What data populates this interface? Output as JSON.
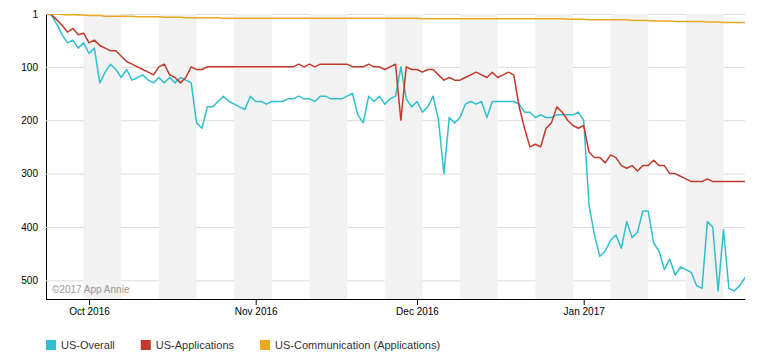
{
  "chart_data": {
    "type": "line",
    "x": [
      0,
      1,
      2,
      3,
      4,
      5,
      6,
      7,
      8,
      9,
      10,
      11,
      12,
      13,
      14,
      15,
      16,
      17,
      18,
      19,
      20,
      21,
      22,
      23,
      24,
      25,
      26,
      27,
      28,
      29,
      30,
      31,
      32,
      33,
      34,
      35,
      36,
      37,
      38,
      39,
      40,
      41,
      42,
      43,
      44,
      45,
      46,
      47,
      48,
      49,
      50,
      51,
      52,
      53,
      54,
      55,
      56,
      57,
      58,
      59,
      60,
      61,
      62,
      63,
      64,
      65,
      66,
      67,
      68,
      69,
      70,
      71,
      72,
      73,
      74,
      75,
      76,
      77,
      78,
      79,
      80,
      81,
      82,
      83,
      84,
      85,
      86,
      87,
      88,
      89,
      90,
      91,
      92,
      93,
      94,
      95,
      96,
      97,
      98,
      99,
      100,
      101,
      102,
      103,
      104,
      105,
      106,
      107,
      108,
      109,
      110,
      111,
      112,
      113,
      114,
      115,
      116,
      117,
      118,
      119,
      120,
      121,
      122,
      123,
      124,
      125,
      126,
      127,
      128,
      129,
      130
    ],
    "xlim": [
      0,
      130
    ],
    "xticks": [
      {
        "value": 8,
        "label": "Oct 2016"
      },
      {
        "value": 39,
        "label": "Nov 2016"
      },
      {
        "value": 69,
        "label": "Dec 2016"
      },
      {
        "value": 100,
        "label": "Jan 2017"
      }
    ],
    "ylim": [
      535,
      1
    ],
    "yticks": [
      1,
      100,
      200,
      300,
      400,
      500
    ],
    "grid": true,
    "legend": "bottom",
    "annotations": [
      "©2017 App Annie"
    ],
    "series": [
      {
        "name": "US-Overall",
        "color": "#30bfcf",
        "values": [
          1,
          3,
          20,
          40,
          55,
          50,
          65,
          55,
          75,
          65,
          130,
          110,
          95,
          105,
          120,
          105,
          125,
          120,
          115,
          125,
          130,
          120,
          130,
          120,
          130,
          120,
          125,
          130,
          205,
          215,
          175,
          175,
          165,
          155,
          165,
          170,
          175,
          180,
          155,
          165,
          165,
          170,
          165,
          165,
          165,
          160,
          160,
          155,
          160,
          160,
          165,
          155,
          155,
          160,
          160,
          160,
          155,
          150,
          190,
          205,
          155,
          165,
          155,
          170,
          160,
          155,
          100,
          160,
          175,
          165,
          185,
          175,
          155,
          200,
          300,
          195,
          205,
          195,
          170,
          165,
          170,
          165,
          195,
          165,
          165,
          165,
          165,
          165,
          170,
          185,
          185,
          195,
          190,
          195,
          195,
          190,
          190,
          190,
          190,
          185,
          200,
          360,
          415,
          455,
          445,
          425,
          415,
          440,
          390,
          420,
          410,
          370,
          370,
          430,
          445,
          480,
          460,
          490,
          475,
          480,
          485,
          510,
          515,
          390,
          400,
          520,
          405,
          515,
          520,
          510,
          495
        ]
      },
      {
        "name": "US-Applications",
        "color": "#c0392b",
        "values": [
          1,
          2,
          12,
          22,
          35,
          28,
          40,
          37,
          55,
          50,
          60,
          65,
          70,
          70,
          80,
          90,
          95,
          100,
          105,
          110,
          115,
          100,
          95,
          115,
          120,
          130,
          120,
          100,
          105,
          105,
          100,
          100,
          100,
          100,
          100,
          100,
          100,
          100,
          100,
          100,
          100,
          100,
          100,
          100,
          100,
          100,
          100,
          95,
          100,
          95,
          100,
          95,
          95,
          95,
          95,
          95,
          95,
          100,
          100,
          100,
          95,
          100,
          100,
          105,
          100,
          95,
          200,
          100,
          105,
          105,
          110,
          105,
          105,
          115,
          125,
          120,
          125,
          125,
          120,
          115,
          110,
          115,
          120,
          110,
          120,
          115,
          110,
          115,
          175,
          215,
          250,
          245,
          250,
          215,
          205,
          175,
          185,
          200,
          210,
          215,
          210,
          260,
          270,
          270,
          280,
          265,
          270,
          285,
          290,
          285,
          295,
          285,
          285,
          275,
          285,
          285,
          300,
          300,
          305,
          310,
          315,
          315,
          315,
          310,
          315,
          315,
          315,
          315,
          315,
          315,
          315
        ]
      },
      {
        "name": "US-Communication (Applications)",
        "color": "#e8a820",
        "values": [
          1,
          1,
          1,
          2,
          3,
          2,
          3,
          3,
          4,
          4,
          4,
          5,
          5,
          5,
          5,
          5,
          5,
          6,
          6,
          6,
          6,
          6,
          7,
          7,
          7,
          7,
          8,
          8,
          8,
          8,
          8,
          8,
          8,
          9,
          9,
          9,
          9,
          9,
          9,
          9,
          9,
          9,
          9,
          9,
          9,
          9,
          9,
          9,
          9,
          9,
          9,
          9,
          9,
          9,
          9,
          9,
          9,
          9,
          9,
          9,
          9,
          9,
          9,
          9,
          9,
          9,
          9,
          9,
          9,
          9,
          10,
          10,
          10,
          10,
          10,
          10,
          10,
          10,
          10,
          10,
          10,
          10,
          10,
          10,
          10,
          10,
          10,
          10,
          10,
          10,
          10,
          10,
          10,
          10,
          10,
          10,
          10,
          11,
          11,
          11,
          11,
          12,
          12,
          12,
          12,
          12,
          12,
          12,
          12,
          13,
          13,
          13,
          13,
          14,
          14,
          14,
          14,
          15,
          15,
          15,
          15,
          15,
          15,
          16,
          16,
          16,
          17,
          17,
          17,
          17,
          17
        ]
      }
    ]
  }
}
